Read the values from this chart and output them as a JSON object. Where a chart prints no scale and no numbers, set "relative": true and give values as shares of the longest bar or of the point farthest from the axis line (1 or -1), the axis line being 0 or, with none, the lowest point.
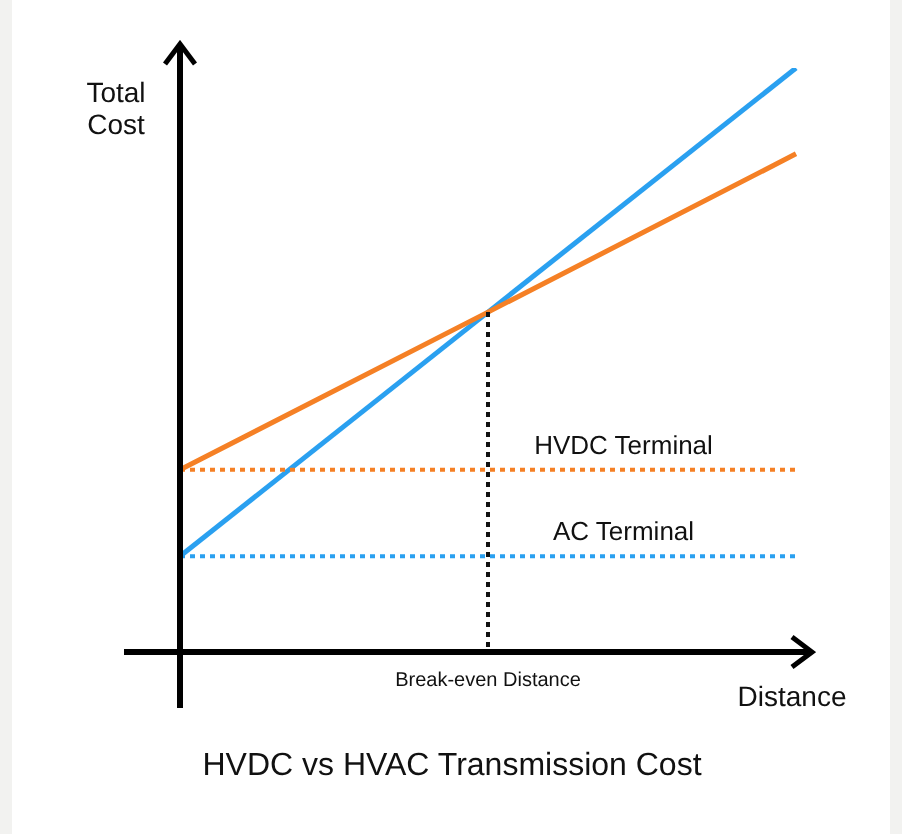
{
  "chart_data": {
    "type": "line",
    "title": "HVDC vs HVAC Transmission Cost",
    "xlabel": "Distance",
    "ylabel": "Total Cost",
    "relative": true,
    "annotations": [
      "Break-even Distance"
    ],
    "legend": false,
    "marker": "none",
    "categories": [
      null,
      null,
      null
    ],
    "series": [
      {
        "color": "#f58025",
        "values": [
          0.312,
          0.582,
          0.853
        ]
      },
      {
        "color": "#2aa0f0",
        "values": [
          0.164,
          0.582,
          1
        ]
      }
    ],
    "ref_lines": [
      {
        "axis": "y",
        "value": 0.312,
        "label": "HVDC Terminal",
        "color": "#f58025",
        "line_style": "dotted"
      },
      {
        "axis": "y",
        "value": 0.164,
        "label": "AC Terminal",
        "color": "#2aa0f0",
        "line_style": "dotted"
      }
    ]
  }
}
